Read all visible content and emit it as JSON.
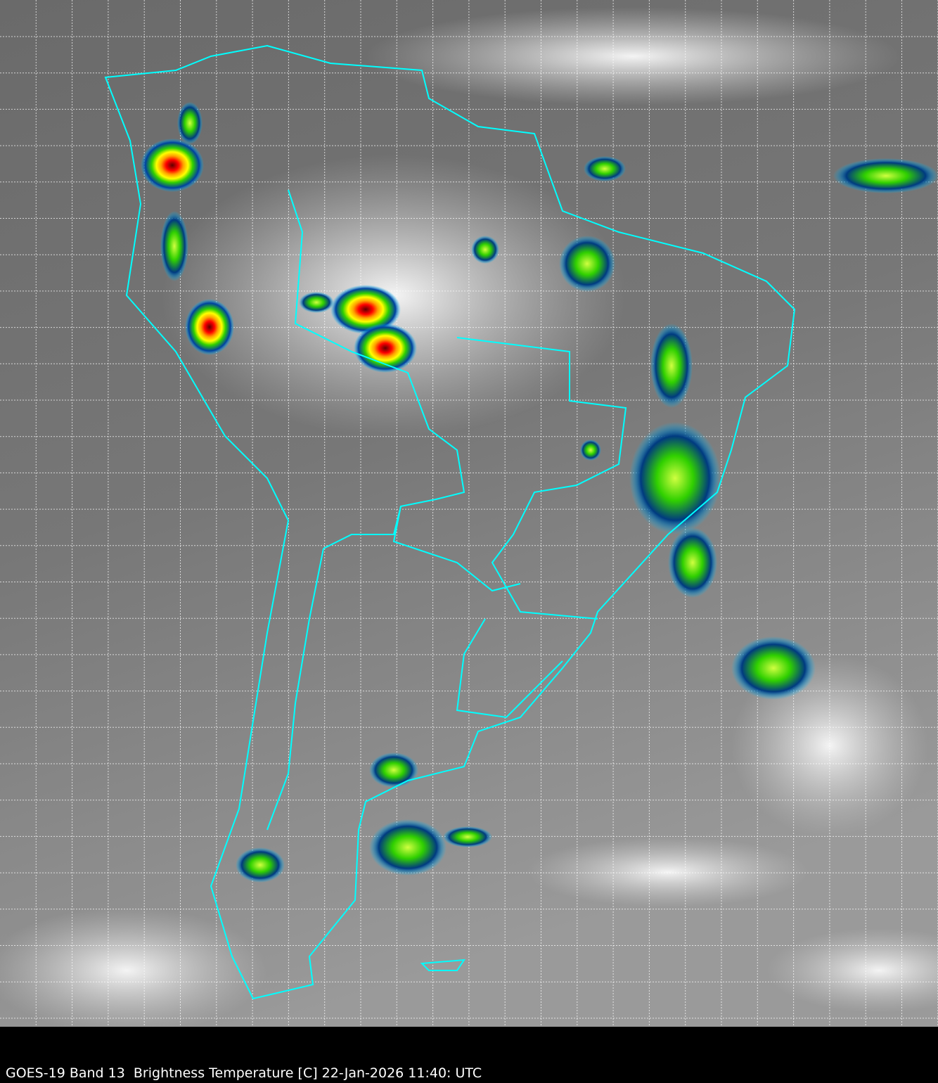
{
  "caption": "GOES-19 Band 13  Brightness Temperature [C] 22-Jan-2026 11:40: UTC",
  "map": {
    "region": "South America",
    "coastline_color": "#00ffff",
    "grid_color": "#ffffff",
    "colormap": [
      "#ffffff",
      "#00c0ff",
      "#0040a0",
      "#00d000",
      "#ffff00",
      "#ff8000",
      "#ff0000",
      "#600000"
    ]
  }
}
